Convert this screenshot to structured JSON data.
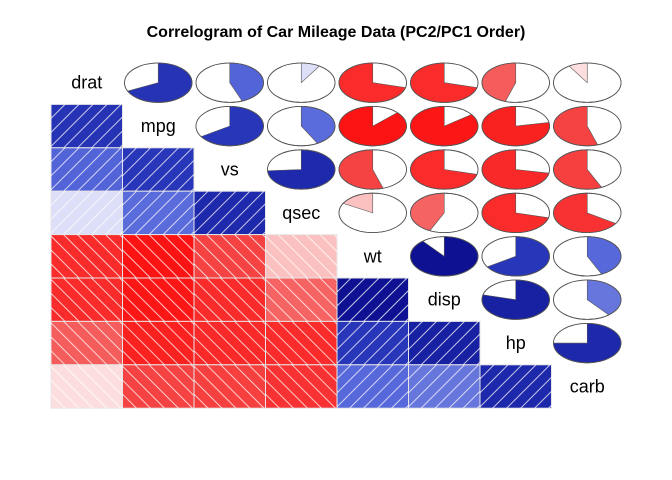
{
  "chart_data": {
    "type": "heatmap",
    "title": "Correlogram of Car Mileage Data (PC2/PC1 Order)",
    "variables": [
      "drat",
      "mpg",
      "vs",
      "qsec",
      "wt",
      "disp",
      "hp",
      "carb"
    ],
    "correlations": [
      [
        1.0,
        0.68,
        0.44,
        0.09,
        -0.71,
        -0.71,
        -0.45,
        -0.09
      ],
      [
        0.68,
        1.0,
        0.66,
        0.42,
        -0.87,
        -0.85,
        -0.78,
        -0.55
      ],
      [
        0.44,
        0.66,
        1.0,
        0.74,
        -0.55,
        -0.71,
        -0.72,
        -0.57
      ],
      [
        0.09,
        0.42,
        0.74,
        1.0,
        -0.17,
        -0.43,
        -0.71,
        -0.66
      ],
      [
        -0.71,
        -0.87,
        -0.55,
        -0.17,
        1.0,
        0.89,
        0.66,
        0.43
      ],
      [
        -0.71,
        -0.85,
        -0.71,
        -0.43,
        0.89,
        1.0,
        0.79,
        0.39
      ],
      [
        -0.45,
        -0.78,
        -0.72,
        -0.71,
        0.66,
        0.79,
        1.0,
        0.75
      ],
      [
        -0.09,
        -0.55,
        -0.57,
        -0.66,
        0.43,
        0.39,
        0.75,
        1.0
      ]
    ],
    "lower_panel": "shade",
    "upper_panel": "pie",
    "diagonal_panel": "variable names",
    "colors": {
      "positive_strong": "#00007F",
      "positive_mid": "#3B4FD4",
      "neutral": "#FFFFFF",
      "negative_mid": "#F44A4A",
      "negative_strong": "#FF0000",
      "cell_border": "#E6E6E6",
      "pie_outline": "#555555"
    }
  }
}
